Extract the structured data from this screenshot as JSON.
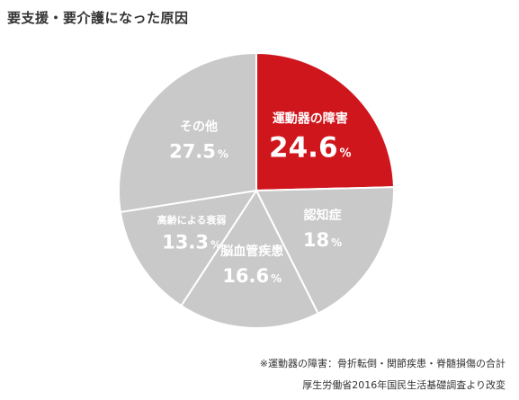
{
  "chart_data": {
    "type": "pie",
    "title": "要支援・要介護になった原因",
    "slices": [
      {
        "label": "運動器の障害",
        "value": 24.6,
        "value_text": "24.6",
        "unit": "%",
        "color": "#d0161d"
      },
      {
        "label": "認知症",
        "value": 18,
        "value_text": "18",
        "unit": "%",
        "color": "#c9c9c9"
      },
      {
        "label": "脳血管疾患",
        "value": 16.6,
        "value_text": "16.6",
        "unit": "%",
        "color": "#c9c9c9"
      },
      {
        "label": "高齢による衰弱",
        "value": 13.3,
        "value_text": "13.3",
        "unit": "%",
        "color": "#c9c9c9"
      },
      {
        "label": "その他",
        "value": 27.5,
        "value_text": "27.5",
        "unit": "%",
        "color": "#c9c9c9"
      }
    ],
    "start": "12 o'clock",
    "direction": "clockwise",
    "separator_color": "#ffffff",
    "label_color": "#ffffff"
  },
  "footnotes": {
    "note": "※運動器の障害：骨折転倒・関節疾患・脊髄損傷の合計",
    "source": "厚生労働省2016年国民生活基礎調査より改変"
  }
}
